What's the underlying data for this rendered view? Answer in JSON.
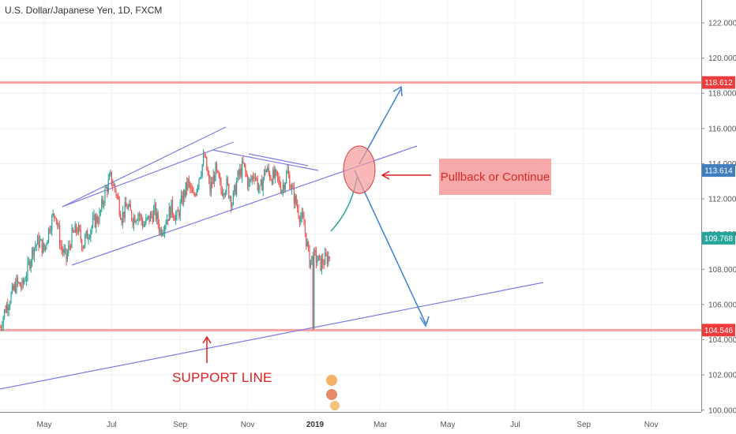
{
  "title": "U.S. Dollar/Japanese Yen, 1D, FXCM",
  "colors": {
    "up": "#26a69a",
    "down": "#ef5350",
    "resistance_line": "#f7a3a3",
    "support_line": "#f7a3a3",
    "trend_line": "#7b7be6",
    "arrow": "#3f7fd6",
    "level_red": "#ef3b3b",
    "level_blue": "#3f7fbf",
    "level_green": "#26a69a",
    "circle_fill": "#f59a9a",
    "circle_stroke": "#e03b3b"
  },
  "annotations": {
    "callout": "Pullback or Continue",
    "support": "SUPPORT LINE"
  },
  "chart_data": {
    "type": "candlestick",
    "title": "U.S. Dollar/Japanese Yen, 1D, FXCM",
    "ylim": [
      99.9,
      123.3
    ],
    "y_ticks": [
      "100.000",
      "102.000",
      "104.000",
      "106.000",
      "108.000",
      "110.000",
      "112.000",
      "114.000",
      "116.000",
      "118.000",
      "120.000",
      "122.000"
    ],
    "x_ticks": [
      "May",
      "Jul",
      "Sep",
      "Nov",
      "2019",
      "Mar",
      "May",
      "Jul",
      "Sep",
      "Nov"
    ],
    "price_labels": [
      {
        "text": "118.612",
        "value": 118.612,
        "color": "red"
      },
      {
        "text": "113.614",
        "value": 113.614,
        "color": "blue"
      },
      {
        "text": "109.768",
        "value": 109.768,
        "color": "green"
      },
      {
        "text": "104.546",
        "value": 104.546,
        "color": "red"
      }
    ],
    "horizontal_levels": [
      118.612,
      104.546
    ],
    "price_path_days": [
      0,
      5,
      10,
      15,
      20,
      25,
      30,
      35,
      40,
      45,
      50,
      55,
      60,
      65,
      70,
      75,
      80,
      85,
      90,
      95,
      100,
      105,
      110,
      115,
      120,
      125,
      130,
      135,
      140,
      145,
      150,
      155,
      160,
      165,
      170,
      175,
      180,
      185,
      190,
      195,
      200,
      205,
      210,
      215,
      220,
      225,
      230,
      235,
      240,
      245,
      250,
      255,
      260,
      265,
      270,
      275,
      280,
      285,
      290,
      295,
      300,
      305
    ],
    "price_path_values": [
      104.7,
      105.8,
      106.5,
      107.2,
      107.0,
      108.0,
      109.2,
      109.6,
      109.1,
      110.5,
      111.3,
      109.3,
      108.6,
      109.9,
      110.3,
      109.4,
      110.1,
      110.7,
      111.0,
      112.4,
      113.2,
      112.4,
      111.0,
      111.6,
      110.9,
      111.2,
      110.5,
      110.9,
      111.3,
      110.2,
      110.8,
      111.5,
      110.9,
      112.0,
      112.9,
      112.0,
      113.3,
      114.4,
      112.5,
      113.6,
      112.5,
      112.8,
      111.8,
      113.2,
      113.9,
      112.8,
      113.5,
      112.4,
      113.7,
      113.3,
      113.2,
      112.6,
      113.5,
      112.3,
      111.3,
      110.5,
      108.5,
      108.7,
      108.3,
      108.6,
      108.8,
      109.3
    ]
  }
}
